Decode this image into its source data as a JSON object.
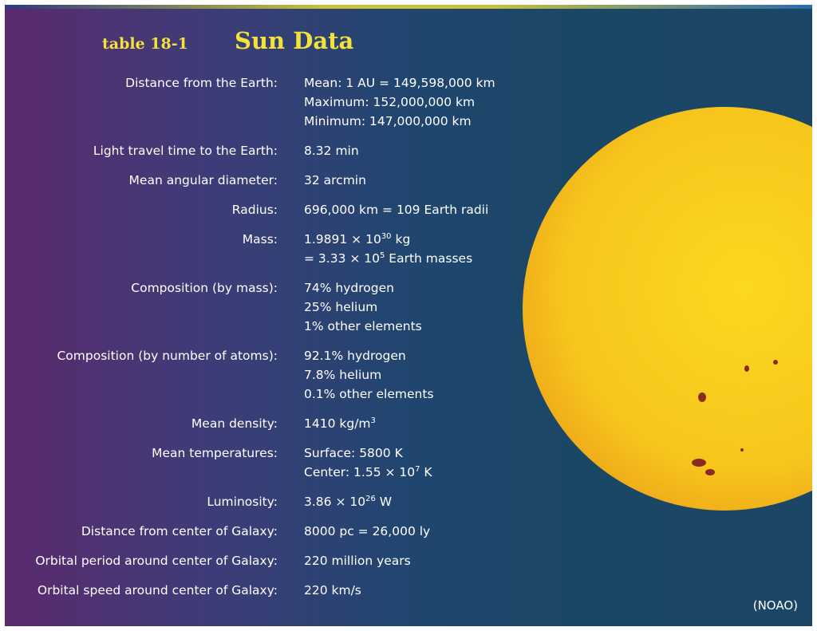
{
  "header": {
    "label": "table 18-1",
    "title": "Sun Data"
  },
  "table": {
    "rows": [
      {
        "label": "Distance from the Earth:",
        "lines": [
          "Mean: 1 AU = 149,598,000 km",
          "Maximum: 152,000,000 km",
          "Minimum: 147,000,000 km"
        ]
      },
      {
        "label": "Light travel time to the Earth:",
        "lines": [
          "8.32 min"
        ]
      },
      {
        "label": "Mean angular diameter:",
        "lines": [
          "32 arcmin"
        ]
      },
      {
        "label": "Radius:",
        "lines": [
          "696,000 km = 109 Earth radii"
        ]
      },
      {
        "label": "Mass:",
        "lines": [
          [
            {
              "text": "1.9891 × 10"
            },
            {
              "sup": "30"
            },
            {
              "text": " kg"
            }
          ],
          [
            {
              "text": "= 3.33 × 10"
            },
            {
              "sup": "5"
            },
            {
              "text": " Earth masses"
            }
          ]
        ]
      },
      {
        "label": "Composition (by mass):",
        "lines": [
          "74% hydrogen",
          "25% helium",
          "1% other elements"
        ]
      },
      {
        "label": "Composition (by number of atoms):",
        "lines": [
          "92.1% hydrogen",
          "7.8% helium",
          "0.1% other elements"
        ]
      },
      {
        "label": "Mean density:",
        "lines": [
          [
            {
              "text": "1410 kg/m"
            },
            {
              "sup": "3"
            }
          ]
        ]
      },
      {
        "label": "Mean temperatures:",
        "lines": [
          "Surface: 5800 K",
          [
            {
              "text": "Center: 1.55 × 10"
            },
            {
              "sup": "7"
            },
            {
              "text": " K"
            }
          ]
        ]
      },
      {
        "label": "Luminosity:",
        "lines": [
          [
            {
              "text": "3.86 × 10"
            },
            {
              "sup": "26"
            },
            {
              "text": " W"
            }
          ]
        ]
      },
      {
        "label": "Distance from center of Galaxy:",
        "lines": [
          "8000 pc = 26,000 ly"
        ]
      },
      {
        "label": "Orbital period around center of Galaxy:",
        "lines": [
          "220 million years"
        ]
      },
      {
        "label": "Orbital speed around center of Galaxy:",
        "lines": [
          "220 km/s"
        ]
      }
    ]
  },
  "credit": "(NOAO)"
}
